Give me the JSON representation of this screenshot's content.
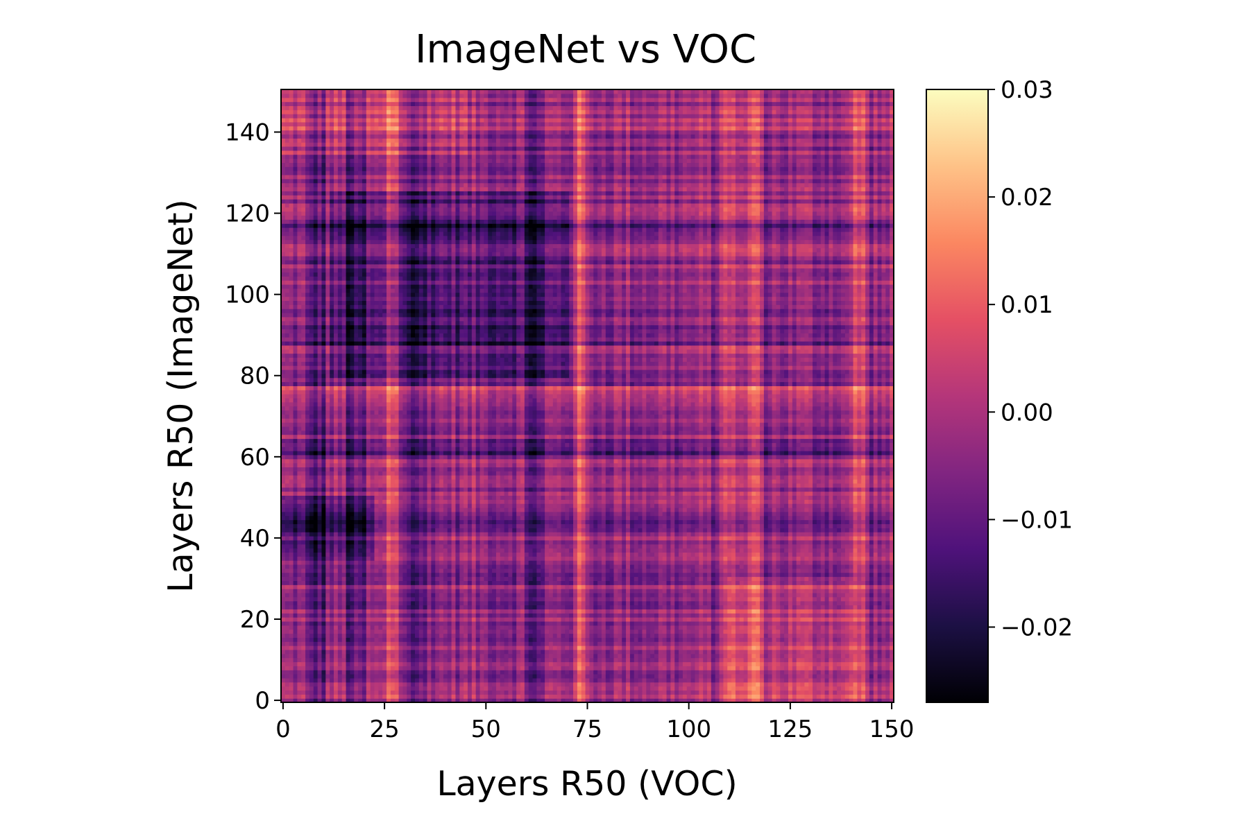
{
  "chart_data": {
    "type": "heatmap",
    "title": "ImageNet vs VOC",
    "xlabel": "Layers R50 (VOC)",
    "ylabel": "Layers R50 (ImageNet)",
    "xlim": [
      0,
      151
    ],
    "ylim": [
      0,
      151
    ],
    "x_ticks": [
      0,
      25,
      50,
      75,
      100,
      125,
      150
    ],
    "y_ticks": [
      0,
      20,
      40,
      60,
      80,
      100,
      120,
      140
    ],
    "x_tick_labels": [
      "0",
      "25",
      "50",
      "75",
      "100",
      "125",
      "150"
    ],
    "y_tick_labels": [
      "0",
      "20",
      "40",
      "60",
      "80",
      "100",
      "120",
      "140"
    ],
    "colormap": "magma",
    "colorbar": {
      "range": [
        -0.027,
        0.03
      ],
      "ticks": [
        0.03,
        0.02,
        0.01,
        0.0,
        -0.01,
        -0.02
      ],
      "tick_labels": [
        "0.03",
        "0.02",
        "0.01",
        "0.00",
        "−0.01",
        "−0.02"
      ]
    },
    "grid": false,
    "matrix_size": [
      151,
      151
    ],
    "structure": {
      "bright_columns": [
        27,
        73,
        110,
        116,
        142
      ],
      "dark_columns": [
        8,
        18,
        33,
        62
      ],
      "dark_rows": [
        116,
        90,
        62,
        44
      ],
      "bright_rows": [
        76,
        142
      ]
    }
  },
  "colors": {
    "magma_stops": [
      "#000004",
      "#1c1044",
      "#4f127b",
      "#812581",
      "#b5367a",
      "#e55064",
      "#fb8761",
      "#fec287",
      "#fcfdbf"
    ],
    "axis": "#000000"
  }
}
